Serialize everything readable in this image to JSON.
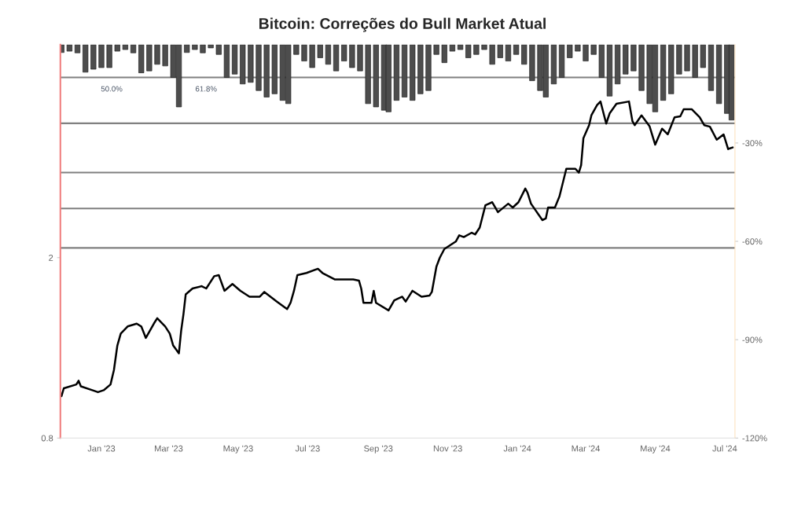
{
  "chart_data": {
    "type": "line",
    "title": "Bitcoin: Correções do Bull Market Atual",
    "log": "y",
    "legend": false,
    "xlim": [
      "2022-11-26",
      "2024-07-10"
    ],
    "xticks": [
      {
        "value": "2023-01-01",
        "label": "Jan '23"
      },
      {
        "value": "2023-03-01",
        "label": "Mar '23"
      },
      {
        "value": "2023-05-01",
        "label": "May '23"
      },
      {
        "value": "2023-07-01",
        "label": "Jul '23"
      },
      {
        "value": "2023-09-01",
        "label": "Sep '23"
      },
      {
        "value": "2023-11-01",
        "label": "Nov '23"
      },
      {
        "value": "2024-01-01",
        "label": "Jan '24"
      },
      {
        "value": "2024-03-01",
        "label": "Mar '24"
      },
      {
        "value": "2024-05-01",
        "label": "May '24"
      },
      {
        "value": "2024-07-01",
        "label": "Jul '24"
      }
    ],
    "ylim": [
      0.8,
      5.9
    ],
    "yticks": [
      0.8,
      2
    ],
    "y2lim": [
      -120,
      0
    ],
    "y2ticks": [
      {
        "value": -30,
        "label": "-30%"
      },
      {
        "value": -60,
        "label": "-60%"
      },
      {
        "value": -90,
        "label": "-90%"
      },
      {
        "value": -120,
        "label": "-120%"
      }
    ],
    "ref_lines": [
      {
        "axis": "y2",
        "value": -10,
        "color": "#808080"
      },
      {
        "axis": "y2",
        "value": -24,
        "color": "#808080"
      },
      {
        "axis": "y2",
        "value": -39,
        "color": "#808080"
      },
      {
        "axis": "y2",
        "value": -50,
        "color": "#808080"
      },
      {
        "axis": "y2",
        "value": -62,
        "color": "#808080"
      }
    ],
    "annotations": [
      "50.0%",
      "61.8%"
    ],
    "series": [
      {
        "color": "#000000",
        "x": [
          "2022-11-27",
          "2022-11-29",
          "2022-12-10",
          "2022-12-12",
          "2022-12-14",
          "2022-12-24",
          "2022-12-29",
          "2023-01-03",
          "2023-01-09",
          "2023-01-12",
          "2023-01-15",
          "2023-01-18",
          "2023-01-24",
          "2023-02-01",
          "2023-02-05",
          "2023-02-09",
          "2023-02-16",
          "2023-02-19",
          "2023-02-26",
          "2023-03-02",
          "2023-03-05",
          "2023-03-10",
          "2023-03-12",
          "2023-03-14",
          "2023-03-16",
          "2023-03-22",
          "2023-03-30",
          "2023-04-03",
          "2023-04-10",
          "2023-04-14",
          "2023-04-19",
          "2023-04-26",
          "2023-05-03",
          "2023-05-11",
          "2023-05-20",
          "2023-05-24",
          "2023-06-04",
          "2023-06-13",
          "2023-06-16",
          "2023-06-19",
          "2023-06-22",
          "2023-06-30",
          "2023-07-10",
          "2023-07-14",
          "2023-07-25",
          "2023-08-10",
          "2023-08-15",
          "2023-08-17",
          "2023-08-19",
          "2023-08-26",
          "2023-08-28",
          "2023-08-30",
          "2023-09-10",
          "2023-09-15",
          "2023-09-22",
          "2023-09-25",
          "2023-10-01",
          "2023-10-09",
          "2023-10-16",
          "2023-10-18",
          "2023-10-22",
          "2023-10-25",
          "2023-10-29",
          "2023-11-08",
          "2023-11-11",
          "2023-11-15",
          "2023-11-22",
          "2023-11-25",
          "2023-11-29",
          "2023-12-04",
          "2023-12-10",
          "2023-12-15",
          "2023-12-24",
          "2023-12-28",
          "2024-01-02",
          "2024-01-08",
          "2024-01-10",
          "2024-01-13",
          "2024-01-23",
          "2024-01-26",
          "2024-01-28",
          "2024-02-03",
          "2024-02-07",
          "2024-02-13",
          "2024-02-21",
          "2024-02-24",
          "2024-02-26",
          "2024-02-28",
          "2024-03-04",
          "2024-03-06",
          "2024-03-11",
          "2024-03-14",
          "2024-03-19",
          "2024-03-22",
          "2024-03-28",
          "2024-04-08",
          "2024-04-11",
          "2024-04-13",
          "2024-04-19",
          "2024-04-26",
          "2024-05-01",
          "2024-05-07",
          "2024-05-12",
          "2024-05-18",
          "2024-05-23",
          "2024-05-26",
          "2024-06-02",
          "2024-06-09",
          "2024-06-13",
          "2024-06-18",
          "2024-06-24",
          "2024-06-30",
          "2024-07-04",
          "2024-07-05",
          "2024-07-08"
        ],
        "values": [
          0.99,
          1.03,
          1.05,
          1.07,
          1.04,
          1.02,
          1.01,
          1.02,
          1.05,
          1.13,
          1.28,
          1.36,
          1.41,
          1.43,
          1.41,
          1.33,
          1.43,
          1.47,
          1.41,
          1.36,
          1.28,
          1.23,
          1.38,
          1.5,
          1.66,
          1.71,
          1.73,
          1.71,
          1.82,
          1.83,
          1.69,
          1.75,
          1.69,
          1.64,
          1.64,
          1.68,
          1.6,
          1.54,
          1.59,
          1.69,
          1.83,
          1.85,
          1.89,
          1.85,
          1.79,
          1.79,
          1.78,
          1.71,
          1.59,
          1.59,
          1.69,
          1.59,
          1.53,
          1.61,
          1.64,
          1.6,
          1.69,
          1.64,
          1.65,
          1.68,
          1.91,
          2.0,
          2.09,
          2.17,
          2.24,
          2.22,
          2.27,
          2.25,
          2.33,
          2.61,
          2.65,
          2.52,
          2.63,
          2.58,
          2.65,
          2.84,
          2.78,
          2.63,
          2.42,
          2.44,
          2.58,
          2.58,
          2.73,
          3.14,
          3.14,
          3.08,
          3.2,
          3.67,
          3.92,
          4.12,
          4.34,
          4.42,
          3.95,
          4.16,
          4.37,
          4.42,
          4.0,
          3.92,
          4.12,
          3.9,
          3.55,
          3.85,
          3.74,
          4.08,
          4.1,
          4.25,
          4.25,
          4.08,
          3.92,
          3.89,
          3.64,
          3.74,
          3.47,
          3.48,
          3.5
        ]
      },
      {
        "type": "bar",
        "axis": "y2",
        "color": "#4d4d4d",
        "x": [
          "2022-11-27",
          "2022-12-04",
          "2022-12-11",
          "2022-12-18",
          "2022-12-25",
          "2023-01-01",
          "2023-01-08",
          "2023-01-15",
          "2023-01-22",
          "2023-01-29",
          "2023-02-05",
          "2023-02-12",
          "2023-02-19",
          "2023-02-26",
          "2023-03-05",
          "2023-03-10",
          "2023-03-17",
          "2023-03-24",
          "2023-03-31",
          "2023-04-07",
          "2023-04-14",
          "2023-04-21",
          "2023-04-28",
          "2023-05-05",
          "2023-05-12",
          "2023-05-19",
          "2023-05-26",
          "2023-06-02",
          "2023-06-09",
          "2023-06-14",
          "2023-06-21",
          "2023-06-28",
          "2023-07-05",
          "2023-07-12",
          "2023-07-19",
          "2023-07-26",
          "2023-08-02",
          "2023-08-09",
          "2023-08-16",
          "2023-08-23",
          "2023-08-30",
          "2023-09-06",
          "2023-09-10",
          "2023-09-17",
          "2023-09-24",
          "2023-10-01",
          "2023-10-08",
          "2023-10-15",
          "2023-10-22",
          "2023-10-29",
          "2023-11-05",
          "2023-11-12",
          "2023-11-19",
          "2023-11-26",
          "2023-12-03",
          "2023-12-10",
          "2023-12-17",
          "2023-12-24",
          "2023-12-31",
          "2024-01-07",
          "2024-01-14",
          "2024-01-21",
          "2024-01-26",
          "2024-02-02",
          "2024-02-09",
          "2024-02-16",
          "2024-02-23",
          "2024-03-01",
          "2024-03-08",
          "2024-03-15",
          "2024-03-22",
          "2024-03-29",
          "2024-04-05",
          "2024-04-12",
          "2024-04-19",
          "2024-04-26",
          "2024-05-01",
          "2024-05-08",
          "2024-05-15",
          "2024-05-22",
          "2024-05-29",
          "2024-06-05",
          "2024-06-12",
          "2024-06-19",
          "2024-06-26",
          "2024-07-03",
          "2024-07-07"
        ],
        "values": [
          -2.4,
          -2,
          -2.5,
          -8.4,
          -7.5,
          -7,
          -7,
          -2,
          -1.5,
          -2.5,
          -8.6,
          -8,
          -6,
          -6.5,
          -10,
          -19,
          -2.4,
          -1.5,
          -2.5,
          -1,
          -3,
          -10,
          -9,
          -12,
          -11.5,
          -14,
          -16,
          -15,
          -17,
          -18,
          -3,
          -5,
          -7,
          -4,
          -6,
          -8,
          -5,
          -7,
          -8,
          -18,
          -19,
          -20,
          -20.5,
          -17,
          -16,
          -17,
          -15,
          -14,
          -3,
          -5.5,
          -2,
          -1.5,
          -4,
          -3,
          -1.5,
          -6,
          -4,
          -5,
          -3,
          -6,
          -11,
          -14,
          -16,
          -12,
          -10,
          -4,
          -2,
          -5,
          -3,
          -10,
          -15.7,
          -12,
          -9,
          -8,
          -14,
          -18,
          -20.5,
          -17,
          -15,
          -9,
          -8,
          -10,
          -7,
          -14,
          -18,
          -21,
          -23
        ]
      }
    ]
  }
}
